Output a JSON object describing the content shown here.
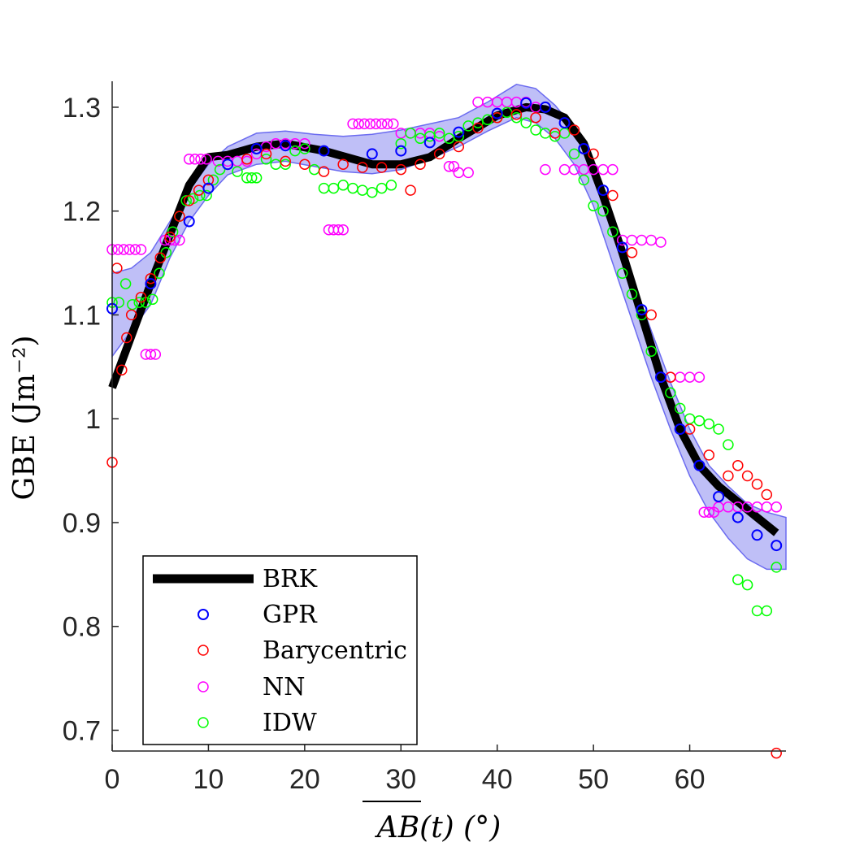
{
  "chart_data": {
    "type": "scatter",
    "title": "",
    "xlabel": "AB(t) (°)",
    "ylabel": "GBE (Jm⁻²)",
    "xlim": [
      0,
      70
    ],
    "ylim": [
      0.68,
      1.325
    ],
    "xticks": [
      "0",
      "10",
      "20",
      "30",
      "40",
      "50",
      "60"
    ],
    "yticks": [
      "0.7",
      "0.8",
      "0.9",
      "1",
      "1.1",
      "1.2",
      "1.3"
    ],
    "legend_location": "bottom-left",
    "colors": {
      "brk": "#000000",
      "gpr": "#0000ff",
      "bary": "#ff0000",
      "nn": "#ff00ff",
      "idw": "#00ff00",
      "band": "#8a8af0",
      "axis": "#262626"
    },
    "band": {
      "name": "GPR confidence band",
      "x": [
        0,
        2,
        4,
        6,
        8,
        10,
        12,
        15,
        18,
        21,
        24,
        27,
        30,
        33,
        36,
        39,
        42,
        44,
        46,
        48,
        50,
        52,
        54,
        56,
        58,
        60,
        62,
        64,
        66,
        68,
        70
      ],
      "upper": [
        1.14,
        1.145,
        1.16,
        1.19,
        1.22,
        1.245,
        1.262,
        1.275,
        1.277,
        1.274,
        1.272,
        1.274,
        1.278,
        1.284,
        1.29,
        1.305,
        1.322,
        1.318,
        1.302,
        1.28,
        1.24,
        1.19,
        1.135,
        1.085,
        1.035,
        0.99,
        0.955,
        0.935,
        0.918,
        0.91,
        0.905
      ],
      "lower": [
        1.06,
        1.085,
        1.11,
        1.155,
        1.19,
        1.215,
        1.235,
        1.245,
        1.248,
        1.243,
        1.238,
        1.236,
        1.24,
        1.25,
        1.262,
        1.277,
        1.29,
        1.285,
        1.27,
        1.245,
        1.205,
        1.15,
        1.095,
        1.04,
        0.99,
        0.945,
        0.91,
        0.885,
        0.865,
        0.855,
        0.855
      ]
    },
    "series": [
      {
        "name": "BRK",
        "style": "line",
        "x": [
          0,
          4,
          8,
          10,
          12,
          15,
          18,
          22,
          27,
          30,
          33,
          36,
          40,
          43,
          45,
          47,
          49,
          51,
          53,
          55,
          57,
          59,
          61,
          63,
          65,
          67,
          69
        ],
        "y": [
          1.03,
          1.13,
          1.225,
          1.252,
          1.254,
          1.262,
          1.265,
          1.258,
          1.245,
          1.245,
          1.252,
          1.27,
          1.292,
          1.3,
          1.298,
          1.29,
          1.265,
          1.215,
          1.16,
          1.1,
          1.04,
          0.99,
          0.955,
          0.935,
          0.92,
          0.905,
          0.89
        ]
      },
      {
        "name": "GPR",
        "style": "markers",
        "x": [
          0,
          4,
          8,
          10,
          12,
          15,
          18,
          22,
          27,
          30,
          33,
          36,
          40,
          43,
          45,
          47,
          49,
          51,
          53,
          55,
          57,
          59,
          61,
          63,
          65,
          67,
          69
        ],
        "y": [
          1.106,
          1.13,
          1.19,
          1.222,
          1.245,
          1.26,
          1.263,
          1.258,
          1.255,
          1.258,
          1.266,
          1.276,
          1.294,
          1.304,
          1.3,
          1.285,
          1.26,
          1.22,
          1.165,
          1.105,
          1.04,
          0.99,
          0.955,
          0.925,
          0.905,
          0.888,
          0.878
        ]
      },
      {
        "name": "Barycentric",
        "style": "markers",
        "x": [
          0,
          0.5,
          1,
          1.5,
          2,
          3,
          4,
          5,
          6,
          7,
          8,
          9,
          10,
          12,
          14,
          16,
          18,
          20,
          22,
          24,
          26,
          28,
          30,
          31,
          32,
          34,
          36,
          38,
          40,
          42,
          44,
          46,
          48,
          50,
          52,
          54,
          56,
          58,
          60,
          62,
          64,
          65,
          66,
          67,
          68,
          69
        ],
        "y": [
          0.958,
          1.145,
          1.047,
          1.078,
          1.1,
          1.117,
          1.135,
          1.155,
          1.175,
          1.195,
          1.21,
          1.22,
          1.23,
          1.245,
          1.25,
          1.255,
          1.248,
          1.245,
          1.238,
          1.245,
          1.242,
          1.242,
          1.24,
          1.22,
          1.245,
          1.255,
          1.262,
          1.28,
          1.29,
          1.293,
          1.29,
          1.275,
          1.278,
          1.255,
          1.215,
          1.16,
          1.1,
          1.04,
          0.99,
          0.965,
          0.945,
          0.955,
          0.945,
          0.937,
          0.927,
          0.678
        ]
      },
      {
        "name": "NN",
        "style": "markers",
        "x": [
          0,
          0.6,
          1.2,
          1.8,
          2.4,
          3,
          3.5,
          4,
          4.5,
          5.5,
          6,
          6.5,
          7,
          8,
          8.6,
          9.2,
          9.8,
          11,
          12,
          13,
          14,
          15,
          16,
          17,
          18,
          19,
          20,
          22.5,
          23,
          23.5,
          24,
          25,
          25.6,
          26.2,
          26.8,
          27.4,
          28,
          28.6,
          29.2,
          30,
          31,
          32,
          33,
          34,
          35,
          35.5,
          36,
          37,
          38,
          39,
          40,
          41,
          42,
          43,
          44,
          45,
          47,
          48,
          49,
          50,
          51,
          52,
          53,
          54,
          55,
          56,
          57,
          58,
          59,
          60,
          61,
          61.5,
          62,
          62.5,
          63,
          64,
          65,
          66,
          67,
          68,
          69
        ],
        "y": [
          1.163,
          1.163,
          1.163,
          1.163,
          1.163,
          1.163,
          1.062,
          1.062,
          1.062,
          1.172,
          1.172,
          1.172,
          1.172,
          1.25,
          1.25,
          1.25,
          1.25,
          1.248,
          1.248,
          1.248,
          1.248,
          1.255,
          1.262,
          1.265,
          1.265,
          1.265,
          1.265,
          1.182,
          1.182,
          1.182,
          1.182,
          1.284,
          1.284,
          1.284,
          1.284,
          1.284,
          1.284,
          1.284,
          1.284,
          1.275,
          1.275,
          1.275,
          1.275,
          1.272,
          1.243,
          1.243,
          1.237,
          1.237,
          1.305,
          1.305,
          1.305,
          1.305,
          1.305,
          1.305,
          1.3,
          1.24,
          1.24,
          1.24,
          1.24,
          1.24,
          1.24,
          1.24,
          1.172,
          1.172,
          1.172,
          1.172,
          1.17,
          1.04,
          1.04,
          1.04,
          1.04,
          0.91,
          0.91,
          0.91,
          0.915,
          0.915,
          0.915,
          0.915,
          0.915,
          0.915,
          0.915
        ]
      },
      {
        "name": "IDW",
        "style": "markers",
        "x": [
          0,
          0.7,
          1.4,
          2.1,
          2.8,
          3.5,
          4.2,
          4.9,
          5.6,
          6.3,
          7,
          7.7,
          8.4,
          9.1,
          9.8,
          10.5,
          11.2,
          12,
          13,
          14,
          14.5,
          15,
          16,
          17,
          18,
          19,
          20,
          21,
          22,
          23,
          24,
          25,
          26,
          27,
          28,
          29,
          30,
          31,
          32,
          33,
          34,
          35,
          36,
          37,
          38,
          39,
          40,
          41,
          42,
          43,
          44,
          45,
          46,
          47,
          48,
          49,
          50,
          51,
          52,
          53,
          54,
          55,
          56,
          57,
          58,
          59,
          60,
          61,
          62,
          63,
          64,
          65,
          66,
          67,
          68,
          69
        ],
        "y": [
          1.112,
          1.112,
          1.13,
          1.11,
          1.112,
          1.112,
          1.115,
          1.14,
          1.16,
          1.18,
          1.195,
          1.21,
          1.212,
          1.215,
          1.215,
          1.23,
          1.24,
          1.245,
          1.238,
          1.232,
          1.232,
          1.232,
          1.25,
          1.245,
          1.245,
          1.258,
          1.26,
          1.24,
          1.222,
          1.222,
          1.225,
          1.222,
          1.22,
          1.218,
          1.222,
          1.225,
          1.265,
          1.275,
          1.27,
          1.272,
          1.275,
          1.27,
          1.272,
          1.282,
          1.285,
          1.288,
          1.29,
          1.295,
          1.29,
          1.285,
          1.278,
          1.275,
          1.272,
          1.275,
          1.255,
          1.23,
          1.205,
          1.2,
          1.18,
          1.14,
          1.12,
          1.1,
          1.065,
          1.04,
          1.025,
          1.01,
          1.0,
          0.998,
          0.995,
          0.99,
          0.975,
          0.845,
          0.84,
          0.815,
          0.815,
          0.857
        ]
      }
    ]
  }
}
